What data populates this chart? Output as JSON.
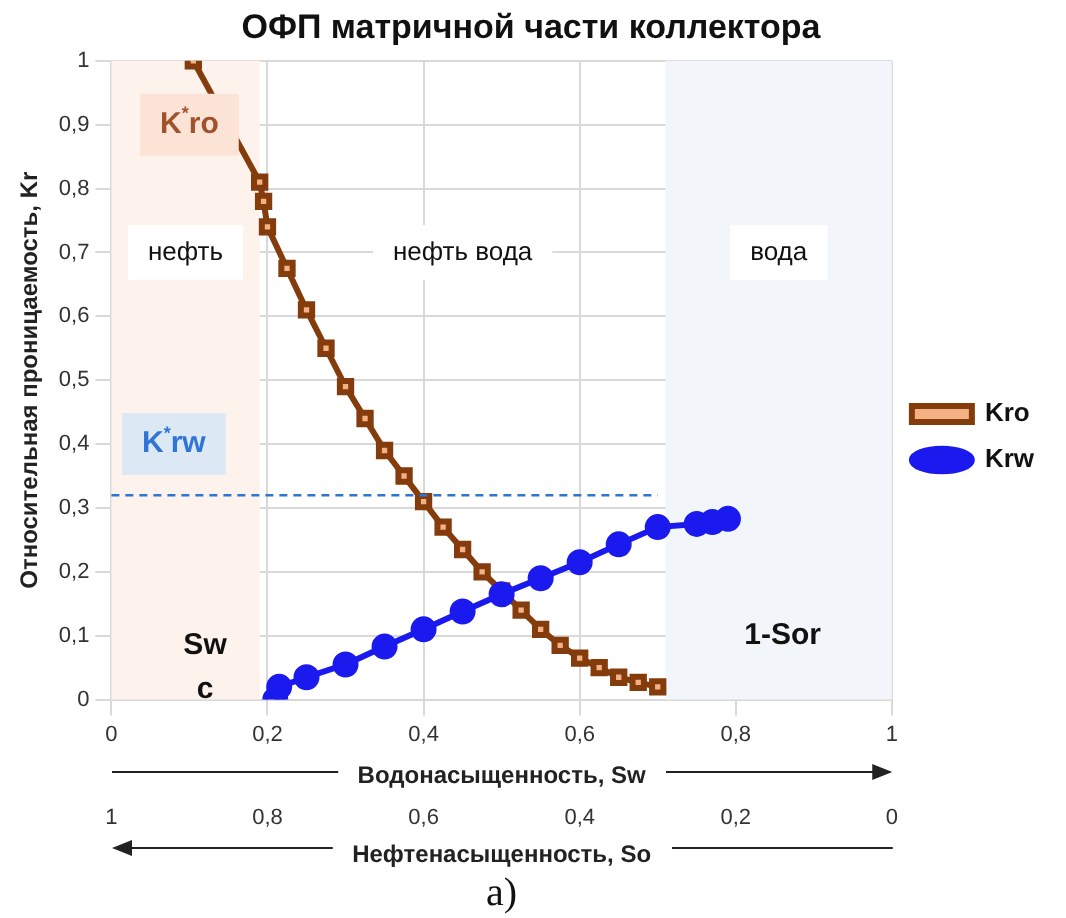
{
  "chart_data": {
    "type": "line",
    "title": "ОФП матричной части коллектора",
    "xlabel": "Водонасыщенность, Sw",
    "x2label": "Нефтенасыщенность, So",
    "ylabel": "Относительная проницаемость, Kr",
    "xlim": [
      0,
      1
    ],
    "xticks": [
      0,
      {
        "value": 0.2,
        "label": "0,2"
      },
      {
        "value": 0.4,
        "label": "0,4"
      },
      {
        "value": 0.6,
        "label": "0,6"
      },
      {
        "value": 0.8,
        "label": "0,8"
      },
      1
    ],
    "x2lim": [
      1,
      0
    ],
    "x2ticks": [
      1,
      {
        "value": 0.8,
        "label": "0,8"
      },
      {
        "value": 0.6,
        "label": "0,6"
      },
      {
        "value": 0.4,
        "label": "0,4"
      },
      {
        "value": 0.2,
        "label": "0,2"
      },
      0
    ],
    "ylim": [
      0,
      1
    ],
    "yticks": [
      0,
      {
        "value": 0.1,
        "label": "0,1"
      },
      {
        "value": 0.2,
        "label": "0,2"
      },
      {
        "value": 0.3,
        "label": "0,3"
      },
      {
        "value": 0.4,
        "label": "0,4"
      },
      {
        "value": 0.5,
        "label": "0,5"
      },
      {
        "value": 0.6,
        "label": "0,6"
      },
      {
        "value": 0.7,
        "label": "0,7"
      },
      {
        "value": 0.8,
        "label": "0,8"
      },
      {
        "value": 0.9,
        "label": "0,9"
      },
      1
    ],
    "grid": true,
    "legend": "right",
    "series": [
      {
        "name": "Kro",
        "color": "#843c0c",
        "marker": "square",
        "x": [
          0.105,
          0.19,
          0.195,
          0.2,
          0.225,
          0.25,
          0.275,
          0.3,
          0.325,
          0.35,
          0.375,
          0.4,
          0.425,
          0.45,
          0.475,
          0.5,
          0.525,
          0.55,
          0.575,
          0.6,
          0.625,
          0.65,
          0.675,
          0.7
        ],
        "values": [
          1,
          0.81,
          0.78,
          0.74,
          0.675,
          0.61,
          0.55,
          0.49,
          0.44,
          0.39,
          0.35,
          0.31,
          0.27,
          0.235,
          0.2,
          0.17,
          0.14,
          0.11,
          0.085,
          0.065,
          0.05,
          0.035,
          0.027,
          0.02
        ]
      },
      {
        "name": "Krw",
        "color": "#1a1aee",
        "marker": "circle",
        "x": [
          0.21,
          0.215,
          0.25,
          0.3,
          0.35,
          0.4,
          0.45,
          0.5,
          0.55,
          0.6,
          0.65,
          0.7,
          0.75,
          0.77,
          0.79
        ],
        "values": [
          0,
          0.02,
          0.035,
          0.055,
          0.083,
          0.11,
          0.138,
          0.165,
          0.19,
          0.215,
          0.243,
          0.27,
          0.275,
          0.278,
          0.283
        ]
      }
    ],
    "ref_lines": [
      {
        "axis": "y",
        "value": 0.32,
        "label": "K$^{*}$rw",
        "color": "#2e75d6",
        "line_style": "dashed"
      }
    ],
    "bands": [
      {
        "axis": "x",
        "from": 0,
        "to": 0.19,
        "label": "нефть",
        "color": "#fdf3ec"
      },
      {
        "axis": "x",
        "from": 0.71,
        "to": 1,
        "label": "вода",
        "color": "#f2f6fb"
      }
    ],
    "annotations": [
      "K$^{*}$ro",
      "нефть вода",
      "Sw c",
      "1-Sor",
      "а)"
    ]
  }
}
